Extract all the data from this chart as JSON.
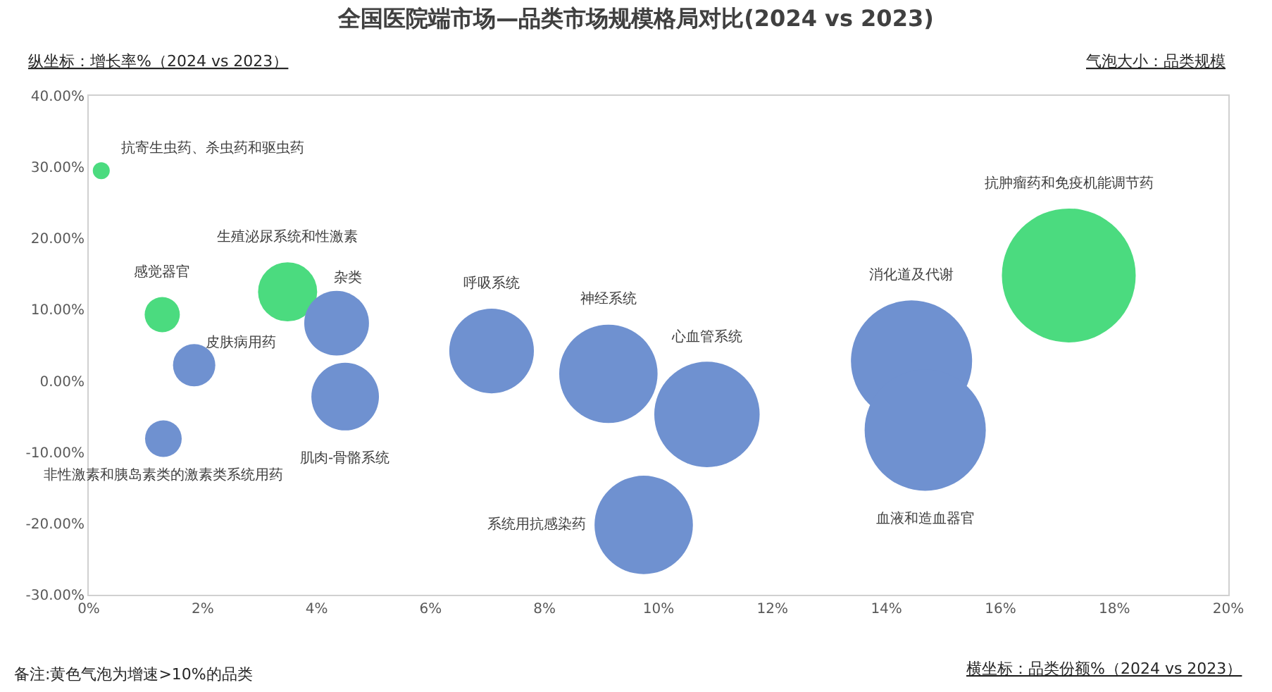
{
  "chart_data": {
    "type": "bubble",
    "title": "全国医院端市场—品类市场规模格局对比(2024 vs 2023)",
    "xlabel": "横坐标：品类份额%（2024 vs 2023）",
    "ylabel": "纵坐标：增长率%（2024 vs 2023）",
    "annotations": [
      "气泡大小：品类规模",
      "备注:黄色气泡为增速>10%的品类"
    ],
    "series": [
      {
        "name": "抗寄生虫药、杀虫药和驱虫药",
        "color": "#4bdb7f",
        "x": [
          0.22
        ],
        "values": [
          29.5
        ],
        "sizes": [
          0.016
        ]
      },
      {
        "name": "感觉器官",
        "color": "#4bdb7f",
        "x": [
          1.29
        ],
        "values": [
          9.3
        ],
        "sizes": [
          0.069
        ]
      },
      {
        "name": "皮肤病用药",
        "color": "#6f91d0",
        "x": [
          1.85
        ],
        "values": [
          2.2
        ],
        "sizes": [
          0.1
        ]
      },
      {
        "name": "非性激素和胰岛素类的激素类系统用药",
        "color": "#6f91d0",
        "x": [
          1.31
        ],
        "values": [
          -8.1
        ],
        "sizes": [
          0.075
        ]
      },
      {
        "name": "生殖泌尿系统和性激素",
        "color": "#4bdb7f",
        "x": [
          3.49
        ],
        "values": [
          12.5
        ],
        "sizes": [
          0.195
        ]
      },
      {
        "name": "杂类",
        "color": "#6f91d0",
        "x": [
          4.35
        ],
        "values": [
          8.1
        ],
        "sizes": [
          0.234
        ]
      },
      {
        "name": "肌肉-骨骼系统",
        "color": "#6f91d0",
        "x": [
          4.5
        ],
        "values": [
          -2.2
        ],
        "sizes": [
          0.255
        ]
      },
      {
        "name": "呼吸系统",
        "color": "#6f91d0",
        "x": [
          7.07
        ],
        "values": [
          4.2
        ],
        "sizes": [
          0.4
        ]
      },
      {
        "name": "神经系统",
        "color": "#6f91d0",
        "x": [
          9.12
        ],
        "values": [
          1.0
        ],
        "sizes": [
          0.54
        ]
      },
      {
        "name": "心血管系统",
        "color": "#6f91d0",
        "x": [
          10.85
        ],
        "values": [
          -4.7
        ],
        "sizes": [
          0.62
        ]
      },
      {
        "name": "系统用抗感染药",
        "color": "#6f91d0",
        "x": [
          9.74
        ],
        "values": [
          -20.2
        ],
        "sizes": [
          0.54
        ]
      },
      {
        "name": "消化道及代谢",
        "color": "#6f91d0",
        "x": [
          14.44
        ],
        "values": [
          2.8
        ],
        "sizes": [
          0.82
        ]
      },
      {
        "name": "血液和造血器官",
        "color": "#6f91d0",
        "x": [
          14.68
        ],
        "values": [
          -6.9
        ],
        "sizes": [
          0.82
        ]
      },
      {
        "name": "抗肿瘤药和免疫机能调节药",
        "color": "#4bdb7f",
        "x": [
          17.2
        ],
        "values": [
          14.8
        ],
        "sizes": [
          1
        ]
      }
    ],
    "xlim": [
      0,
      20
    ],
    "xticks": [
      {
        "value": 0,
        "label": "0%"
      },
      {
        "value": 2,
        "label": "2%"
      },
      {
        "value": 4,
        "label": "4%"
      },
      {
        "value": 6,
        "label": "6%"
      },
      {
        "value": 8,
        "label": "8%"
      },
      {
        "value": 10,
        "label": "10%"
      },
      {
        "value": 12,
        "label": "12%"
      },
      {
        "value": 14,
        "label": "14%"
      },
      {
        "value": 16,
        "label": "16%"
      },
      {
        "value": 18,
        "label": "18%"
      },
      {
        "value": 20,
        "label": "20%"
      }
    ],
    "ylim": [
      -30,
      40
    ],
    "yticks": [
      {
        "value": -30,
        "label": "-30.00%"
      },
      {
        "value": -20,
        "label": "-20.00%"
      },
      {
        "value": -10,
        "label": "-10.00%"
      },
      {
        "value": 0,
        "label": "0.00%"
      },
      {
        "value": 10,
        "label": "10.00%"
      },
      {
        "value": 20,
        "label": "20.00%"
      },
      {
        "value": 30,
        "label": "30.00%"
      },
      {
        "value": 40,
        "label": "40.00%"
      }
    ],
    "grid": false,
    "legend": false
  }
}
